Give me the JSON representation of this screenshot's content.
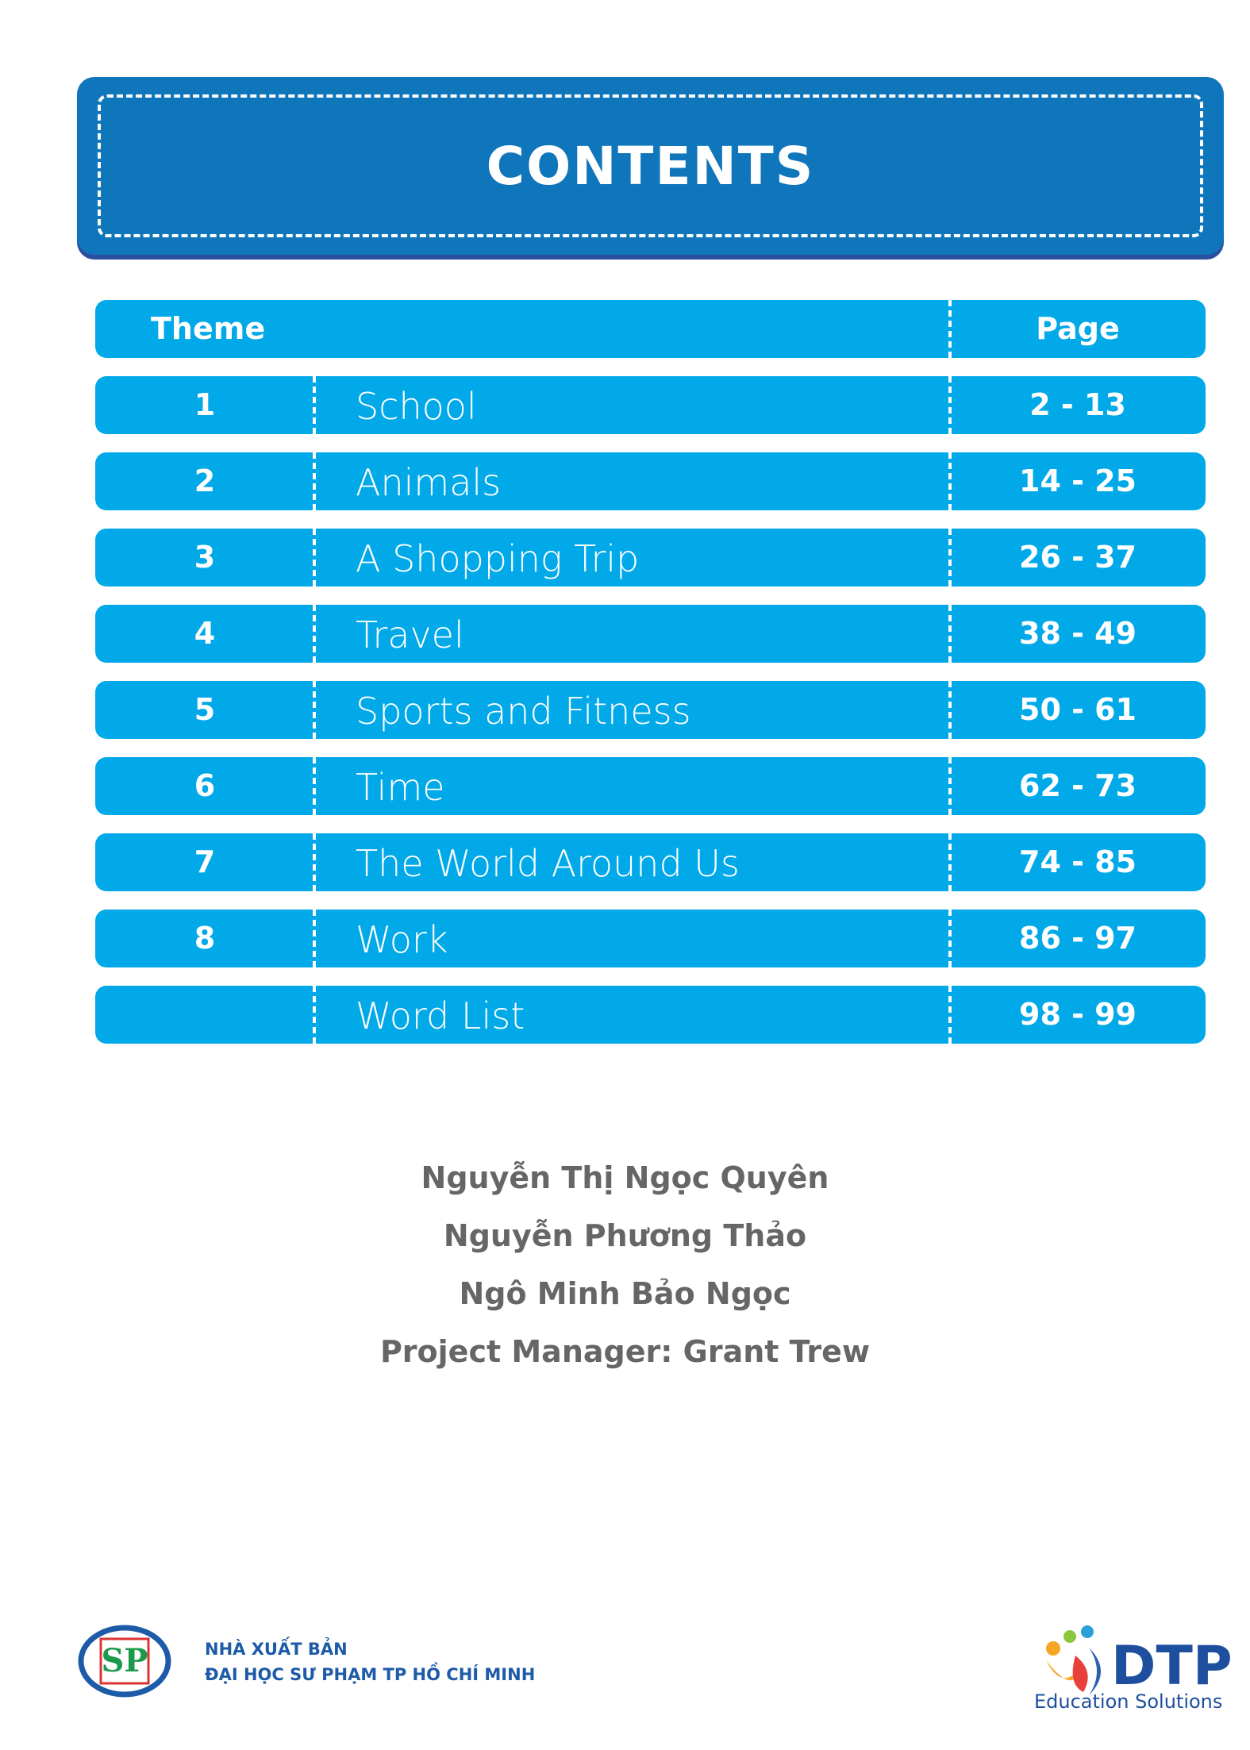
{
  "header": {
    "title": "CONTENTS"
  },
  "table": {
    "columns": [
      "Theme",
      "Page"
    ],
    "rows": [
      [
        "1",
        "School",
        "2 - 13"
      ],
      [
        "2",
        "Animals",
        "14 - 25"
      ],
      [
        "3",
        "A Shopping Trip",
        "26 - 37"
      ],
      [
        "4",
        "Travel",
        "38 - 49"
      ],
      [
        "5",
        "Sports and Fitness",
        "50 - 61"
      ],
      [
        "6",
        "Time",
        "62 - 73"
      ],
      [
        "7",
        "The World Around Us",
        "74 - 85"
      ],
      [
        "8",
        "Work",
        "86 - 97"
      ],
      [
        null,
        "Word List",
        "98 - 99"
      ]
    ]
  },
  "authors": [
    "Nguyễn Thị Ngọc Quyên",
    "Nguyễn Phương Thảo",
    "Ngô Minh Bảo Ngọc",
    "Project Manager: Grant Trew"
  ],
  "footer": {
    "publisher_logo": "SP",
    "publisher": [
      "NHÀ XUẤT BẢN",
      "ĐẠI HỌC SƯ PHẠM TP HỒ CHÍ MINH"
    ],
    "brand": "DTP",
    "brand_tagline": "Education Solutions"
  }
}
